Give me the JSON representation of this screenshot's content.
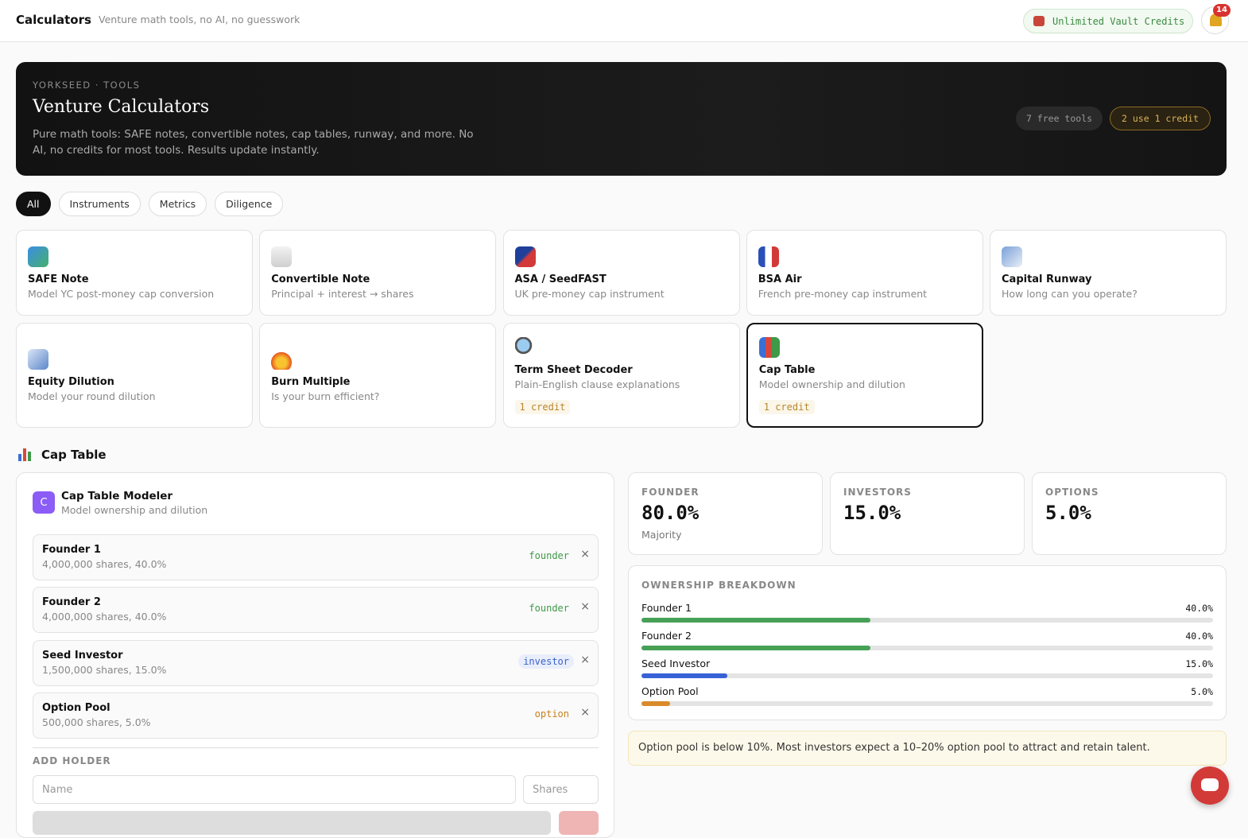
{
  "topbar": {
    "title": "Calculators",
    "separator": ".",
    "subtitle": "Venture math tools, no AI, no guesswork",
    "credits": "Unlimited Vault Credits",
    "notifications": "14"
  },
  "hero": {
    "eyebrow": "YORKSEED · TOOLS",
    "title": "Venture Calculators",
    "description": "Pure math tools: SAFE notes, convertible notes, cap tables, runway, and more. No AI, no credits for most tools. Results update instantly.",
    "badges": [
      "7 free tools",
      "2 use 1 credit"
    ]
  },
  "filters": [
    "All",
    "Instruments",
    "Metrics",
    "Diligence"
  ],
  "tools": [
    {
      "name": "SAFE Note",
      "description": "Model YC post-money cap conversion"
    },
    {
      "name": "Convertible Note",
      "description": "Principal + interest → shares"
    },
    {
      "name": "ASA / SeedFAST",
      "description": "UK pre-money cap instrument"
    },
    {
      "name": "BSA Air",
      "description": "French pre-money cap instrument"
    },
    {
      "name": "Capital Runway",
      "description": "How long can you operate?"
    },
    {
      "name": "Equity Dilution",
      "description": "Model your round dilution"
    },
    {
      "name": "Burn Multiple",
      "description": "Is your burn efficient?"
    },
    {
      "name": "Term Sheet Decoder",
      "description": "Plain-English clause explanations",
      "cost": "1 credit"
    },
    {
      "name": "Cap Table",
      "description": "Model ownership and dilution",
      "cost": "1 credit",
      "selected": true
    }
  ],
  "section": {
    "title": "Cap Table"
  },
  "modeler": {
    "avatar": "C",
    "title": "Cap Table Modeler",
    "subtitle": "Model ownership and dilution",
    "holders": [
      {
        "name": "Founder 1",
        "details": "4,000,000 shares, 40.0%",
        "role": "founder"
      },
      {
        "name": "Founder 2",
        "details": "4,000,000 shares, 40.0%",
        "role": "founder"
      },
      {
        "name": "Seed Investor",
        "details": "1,500,000 shares, 15.0%",
        "role": "investor"
      },
      {
        "name": "Option Pool",
        "details": "500,000 shares, 5.0%",
        "role": "option"
      }
    ],
    "add_holder": {
      "heading": "ADD HOLDER",
      "name_placeholder": "Name",
      "shares_placeholder": "Shares"
    }
  },
  "stats": [
    {
      "label": "FOUNDER",
      "value": "80.0%",
      "note": "Majority"
    },
    {
      "label": "INVESTORS",
      "value": "15.0%"
    },
    {
      "label": "OPTIONS",
      "value": "5.0%"
    }
  ],
  "breakdown": {
    "title": "OWNERSHIP BREAKDOWN",
    "rows": [
      {
        "name": "Founder 1",
        "value": 40,
        "label": "40.0%",
        "color": "#46a157"
      },
      {
        "name": "Founder 2",
        "value": 40,
        "label": "40.0%",
        "color": "#46a157"
      },
      {
        "name": "Seed Investor",
        "value": 15,
        "label": "15.0%",
        "color": "#3761d6"
      },
      {
        "name": "Option Pool",
        "value": 5,
        "label": "5.0%",
        "color": "#d98a2b"
      }
    ]
  },
  "notice": "Option pool is below 10%. Most investors expect a 10–20% option pool to attract and retain talent."
}
